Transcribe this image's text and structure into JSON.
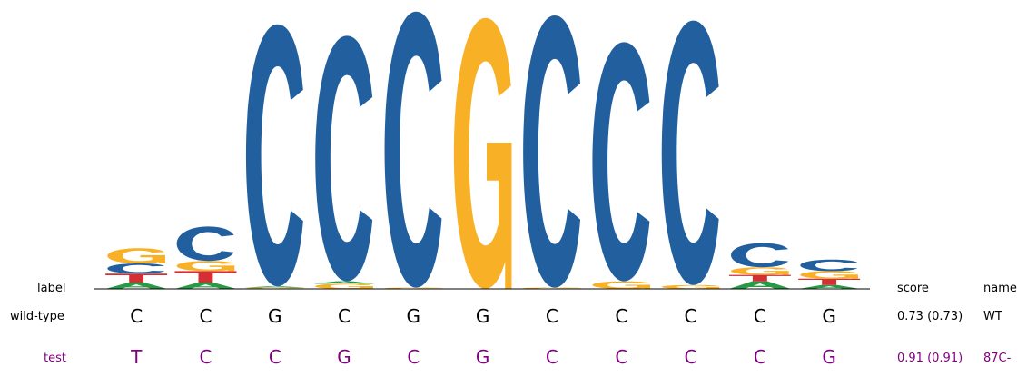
{
  "chart_data": {
    "type": "sequence-logo",
    "colors": {
      "C": "#225f9e",
      "G": "#f8b127",
      "T": "#d42f35",
      "A": "#289a46"
    },
    "positions": [
      {
        "stack": [
          [
            "A",
            0.05
          ],
          [
            "T",
            0.07
          ],
          [
            "C",
            0.08
          ],
          [
            "G",
            0.12
          ]
        ]
      },
      {
        "stack": [
          [
            "A",
            0.05
          ],
          [
            "T",
            0.09
          ],
          [
            "G",
            0.08
          ],
          [
            "C",
            0.27
          ]
        ]
      },
      {
        "stack": [
          [
            "G",
            0.01
          ],
          [
            "A",
            0.01
          ],
          [
            "C",
            2.06
          ]
        ]
      },
      {
        "stack": [
          [
            "G",
            0.04
          ],
          [
            "A",
            0.02
          ],
          [
            "C",
            1.93
          ]
        ]
      },
      {
        "stack": [
          [
            "G",
            0.01
          ],
          [
            "C",
            2.17
          ]
        ]
      },
      {
        "stack": [
          [
            "G",
            2.13
          ]
        ]
      },
      {
        "stack": [
          [
            "G",
            0.01
          ],
          [
            "C",
            2.14
          ]
        ]
      },
      {
        "stack": [
          [
            "G",
            0.06
          ],
          [
            "C",
            1.88
          ]
        ]
      },
      {
        "stack": [
          [
            "G",
            0.03
          ],
          [
            "C",
            2.08
          ]
        ]
      },
      {
        "stack": [
          [
            "A",
            0.06
          ],
          [
            "T",
            0.05
          ],
          [
            "G",
            0.06
          ],
          [
            "C",
            0.19
          ]
        ]
      },
      {
        "stack": [
          [
            "A",
            0.03
          ],
          [
            "T",
            0.05
          ],
          [
            "G",
            0.06
          ],
          [
            "C",
            0.09
          ]
        ]
      }
    ],
    "sequences": [
      {
        "label": "wild-type",
        "letters": [
          "C",
          "C",
          "G",
          "C",
          "G",
          "G",
          "C",
          "C",
          "C",
          "C",
          "G"
        ],
        "score": "0.73 (0.73)",
        "name": "WT",
        "color": "#000000"
      },
      {
        "label": "test",
        "letters": [
          "T",
          "C",
          "C",
          "G",
          "C",
          "G",
          "C",
          "C",
          "C",
          "C",
          "G"
        ],
        "score": "0.91 (0.91)",
        "name": "87C-",
        "color": "#800080"
      }
    ],
    "headers": {
      "label": "label",
      "score": "score",
      "name": "name"
    }
  }
}
